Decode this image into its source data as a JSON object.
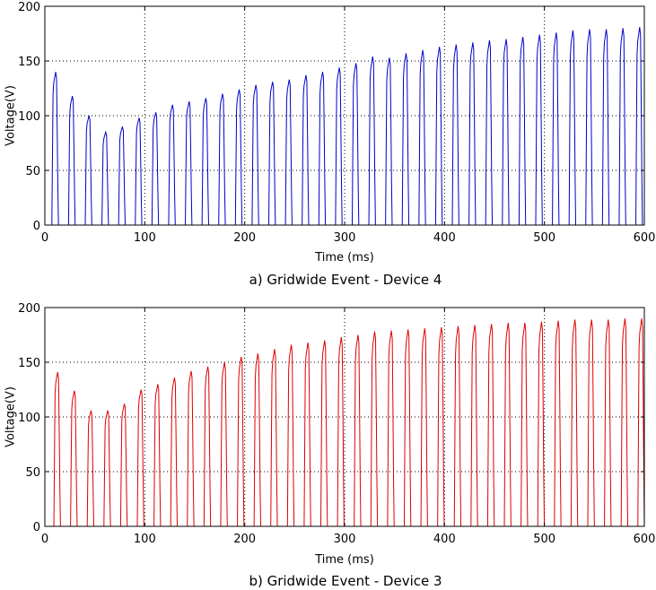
{
  "chart_data": [
    {
      "type": "line",
      "caption": "a) Gridwide Event - Device 4",
      "xlabel": "Time (ms)",
      "ylabel": "Voltage(V)",
      "xlim": [
        0,
        600
      ],
      "ylim": [
        0,
        200
      ],
      "xticks": [
        0,
        100,
        200,
        300,
        400,
        500,
        600
      ],
      "yticks": [
        0,
        50,
        100,
        150,
        200
      ],
      "grid": true,
      "series": [
        {
          "color": "#0000cc",
          "period_ms": 16.7,
          "pulse_start_ms": [
            7,
            23.7,
            40.4,
            57.1,
            73.8,
            90.5,
            107.2,
            123.9,
            140.6,
            157.3,
            174,
            190.7,
            207.4,
            224.1,
            240.8,
            257.5,
            274.2,
            290.9,
            307.6,
            324.3,
            341,
            357.7,
            374.4,
            391.1,
            407.8,
            424.5,
            441.2,
            457.9,
            474.6,
            491.3,
            508,
            524.7,
            541.4,
            558.1,
            574.8,
            591.5
          ],
          "peak_v": [
            140,
            118,
            100,
            85,
            90,
            98,
            103,
            110,
            113,
            116,
            120,
            124,
            128,
            131,
            133,
            137,
            140,
            144,
            148,
            154,
            153,
            157,
            160,
            163,
            165,
            167,
            169,
            170,
            172,
            174,
            176,
            178,
            179,
            179,
            180,
            181
          ]
        }
      ]
    },
    {
      "type": "line",
      "caption": "b) Gridwide Event - Device 3",
      "xlabel": "Time (ms)",
      "ylabel": "Voltage(V)",
      "xlim": [
        0,
        600
      ],
      "ylim": [
        0,
        200
      ],
      "xticks": [
        0,
        100,
        200,
        300,
        400,
        500,
        600
      ],
      "yticks": [
        0,
        50,
        100,
        150,
        200
      ],
      "grid": true,
      "series": [
        {
          "color": "#dd0000",
          "period_ms": 16.7,
          "pulse_start_ms": [
            9,
            25.7,
            42.4,
            59.1,
            75.8,
            92.5,
            109.2,
            125.9,
            142.6,
            159.3,
            176,
            192.7,
            209.4,
            226.1,
            242.8,
            259.5,
            276.2,
            292.9,
            309.6,
            326.3,
            343,
            359.7,
            376.4,
            393.1,
            409.8,
            426.5,
            443.2,
            459.9,
            476.6,
            493.3,
            510,
            526.7,
            543.4,
            560.1,
            576.8,
            593.5
          ],
          "peak_v": [
            141,
            124,
            106,
            106,
            112,
            125,
            130,
            136,
            142,
            146,
            150,
            155,
            158,
            162,
            166,
            168,
            170,
            173,
            175,
            178,
            179,
            180,
            181,
            182,
            183,
            184,
            185,
            186,
            186,
            187,
            188,
            189,
            189,
            189,
            190,
            190
          ]
        }
      ]
    }
  ]
}
